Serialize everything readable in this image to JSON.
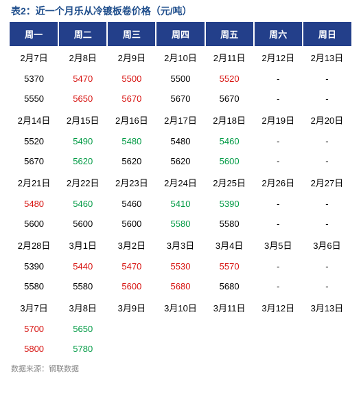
{
  "title": "表2：近一个月乐从冷镀板卷价格（元/吨）",
  "source": "数据来源：钢联数据",
  "colors": {
    "header_bg": "#233f8a",
    "header_fg": "#ffffff",
    "title_color": "#1f4e8c",
    "red": "#d7120f",
    "green": "#009a44",
    "black": "#000000",
    "source_color": "#888888"
  },
  "headers": [
    "周一",
    "周二",
    "周三",
    "周四",
    "周五",
    "周六",
    "周日"
  ],
  "rows": [
    [
      {
        "v": "2月7日"
      },
      {
        "v": "2月8日"
      },
      {
        "v": "2月9日"
      },
      {
        "v": "2月10日"
      },
      {
        "v": "2月11日"
      },
      {
        "v": "2月12日"
      },
      {
        "v": "2月13日"
      }
    ],
    [
      {
        "v": "5370"
      },
      {
        "v": "5470",
        "c": "red"
      },
      {
        "v": "5500",
        "c": "red"
      },
      {
        "v": "5500"
      },
      {
        "v": "5520",
        "c": "red"
      },
      {
        "v": "-"
      },
      {
        "v": "-"
      }
    ],
    [
      {
        "v": "5550"
      },
      {
        "v": "5650",
        "c": "red"
      },
      {
        "v": "5670",
        "c": "red"
      },
      {
        "v": "5670"
      },
      {
        "v": "5670"
      },
      {
        "v": "-"
      },
      {
        "v": "-"
      }
    ],
    [
      {
        "v": "2月14日"
      },
      {
        "v": "2月15日"
      },
      {
        "v": "2月16日"
      },
      {
        "v": "2月17日"
      },
      {
        "v": "2月18日"
      },
      {
        "v": "2月19日"
      },
      {
        "v": "2月20日"
      }
    ],
    [
      {
        "v": "5520"
      },
      {
        "v": "5490",
        "c": "green"
      },
      {
        "v": "5480",
        "c": "green"
      },
      {
        "v": "5480"
      },
      {
        "v": "5460",
        "c": "green"
      },
      {
        "v": "-"
      },
      {
        "v": "-"
      }
    ],
    [
      {
        "v": "5670"
      },
      {
        "v": "5620",
        "c": "green"
      },
      {
        "v": "5620"
      },
      {
        "v": "5620"
      },
      {
        "v": "5600",
        "c": "green"
      },
      {
        "v": "-"
      },
      {
        "v": "-"
      }
    ],
    [
      {
        "v": "2月21日"
      },
      {
        "v": "2月22日"
      },
      {
        "v": "2月23日"
      },
      {
        "v": "2月24日"
      },
      {
        "v": "2月25日"
      },
      {
        "v": "2月26日"
      },
      {
        "v": "2月27日"
      }
    ],
    [
      {
        "v": "5480",
        "c": "red"
      },
      {
        "v": "5460",
        "c": "green"
      },
      {
        "v": "5460"
      },
      {
        "v": "5410",
        "c": "green"
      },
      {
        "v": "5390",
        "c": "green"
      },
      {
        "v": "-"
      },
      {
        "v": "-"
      }
    ],
    [
      {
        "v": "5600"
      },
      {
        "v": "5600"
      },
      {
        "v": "5600"
      },
      {
        "v": "5580",
        "c": "green"
      },
      {
        "v": "5580"
      },
      {
        "v": "-"
      },
      {
        "v": "-"
      }
    ],
    [
      {
        "v": "2月28日"
      },
      {
        "v": "3月1日"
      },
      {
        "v": "3月2日"
      },
      {
        "v": "3月3日"
      },
      {
        "v": "3月4日"
      },
      {
        "v": "3月5日"
      },
      {
        "v": "3月6日"
      }
    ],
    [
      {
        "v": "5390"
      },
      {
        "v": "5440",
        "c": "red"
      },
      {
        "v": "5470",
        "c": "red"
      },
      {
        "v": "5530",
        "c": "red"
      },
      {
        "v": "5570",
        "c": "red"
      },
      {
        "v": "-"
      },
      {
        "v": "-"
      }
    ],
    [
      {
        "v": "5580"
      },
      {
        "v": "5580"
      },
      {
        "v": "5600",
        "c": "red"
      },
      {
        "v": "5680",
        "c": "red"
      },
      {
        "v": "5680"
      },
      {
        "v": "-"
      },
      {
        "v": "-"
      }
    ],
    [
      {
        "v": "3月7日"
      },
      {
        "v": "3月8日"
      },
      {
        "v": "3月9日"
      },
      {
        "v": "3月10日"
      },
      {
        "v": "3月11日"
      },
      {
        "v": "3月12日"
      },
      {
        "v": "3月13日"
      }
    ],
    [
      {
        "v": "5700",
        "c": "red"
      },
      {
        "v": "5650",
        "c": "green"
      },
      {
        "v": ""
      },
      {
        "v": ""
      },
      {
        "v": ""
      },
      {
        "v": ""
      },
      {
        "v": ""
      }
    ],
    [
      {
        "v": "5800",
        "c": "red"
      },
      {
        "v": "5780",
        "c": "green"
      },
      {
        "v": ""
      },
      {
        "v": ""
      },
      {
        "v": ""
      },
      {
        "v": ""
      },
      {
        "v": ""
      }
    ]
  ]
}
